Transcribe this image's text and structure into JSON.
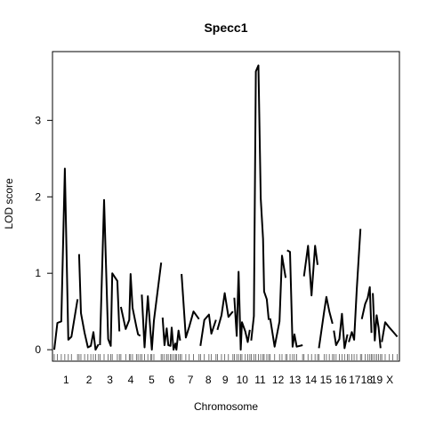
{
  "chart_data": {
    "type": "line",
    "title": "Specc1",
    "xlabel": "Chromosome",
    "ylabel": "LOD score",
    "ylim": [
      -0.15,
      3.9
    ],
    "yticks": [
      0,
      1,
      2,
      3
    ],
    "grid": false,
    "legend": "none",
    "line_color": "#000000",
    "chromosomes": [
      {
        "label": "1",
        "length": 12,
        "points": [
          [
            0,
            0
          ],
          [
            0.7,
            0.35
          ],
          [
            1.6,
            0.37
          ],
          [
            2.4,
            2.37
          ],
          [
            3.2,
            0.13
          ],
          [
            3.9,
            0.17
          ],
          [
            5.3,
            0.66
          ]
        ]
      },
      {
        "label": "2",
        "length": 10,
        "points": [
          [
            0,
            1.25
          ],
          [
            0.5,
            0.48
          ],
          [
            1.5,
            0.22
          ],
          [
            2.4,
            0.03
          ],
          [
            3.2,
            0.05
          ],
          [
            3.9,
            0.23
          ],
          [
            4.5,
            0.0
          ],
          [
            5.3,
            0.07
          ]
        ]
      },
      {
        "label": "3",
        "length": 10,
        "points": [
          [
            0,
            0.06
          ],
          [
            0.8,
            1.96
          ],
          [
            1.6,
            0.14
          ],
          [
            2.1,
            0.05
          ],
          [
            2.4,
            1.0
          ],
          [
            3.4,
            0.9
          ],
          [
            3.8,
            0.24
          ]
        ]
      },
      {
        "label": "4",
        "length": 10,
        "points": [
          [
            0,
            0.56
          ],
          [
            1.5,
            0.27
          ],
          [
            2.6,
            0.39
          ],
          [
            3.0,
            0.99
          ],
          [
            3.6,
            0.55
          ],
          [
            4.8,
            0.3
          ],
          [
            5.3,
            0.2
          ],
          [
            6.0,
            0.18
          ]
        ]
      },
      {
        "label": "5",
        "length": 10,
        "points": [
          [
            0,
            0.72
          ],
          [
            0.7,
            0.03
          ],
          [
            1.5,
            0.7
          ],
          [
            2.2,
            0.2
          ],
          [
            2.5,
            0.0
          ],
          [
            3.0,
            0.38
          ],
          [
            4.8,
            1.14
          ]
        ]
      },
      {
        "label": "6",
        "length": 9,
        "points": [
          [
            0,
            0.42
          ],
          [
            0.6,
            0.06
          ],
          [
            1.3,
            0.28
          ],
          [
            1.8,
            0.06
          ],
          [
            2.5,
            0.05
          ],
          [
            2.9,
            0.29
          ],
          [
            3.5,
            0.0
          ],
          [
            4.1,
            0.08
          ],
          [
            4.4,
            0.0
          ],
          [
            5.1,
            0.25
          ],
          [
            5.6,
            0.12
          ]
        ]
      },
      {
        "label": "7",
        "length": 9,
        "points": [
          [
            0,
            0.99
          ],
          [
            1.0,
            0.16
          ],
          [
            1.8,
            0.3
          ],
          [
            2.8,
            0.5
          ],
          [
            4.1,
            0.4
          ]
        ]
      },
      {
        "label": "8",
        "length": 8,
        "points": [
          [
            0,
            0.05
          ],
          [
            1.1,
            0.39
          ],
          [
            2.4,
            0.46
          ],
          [
            3.1,
            0.21
          ],
          [
            4.4,
            0.39
          ]
        ]
      },
      {
        "label": "9",
        "length": 8,
        "points": [
          [
            0,
            0.26
          ],
          [
            1.0,
            0.45
          ],
          [
            1.8,
            0.74
          ],
          [
            2.7,
            0.43
          ],
          [
            3.8,
            0.5
          ]
        ]
      },
      {
        "label": "10",
        "length": 8,
        "points": [
          [
            0,
            0.68
          ],
          [
            0.8,
            0.18
          ],
          [
            1.4,
            1.02
          ],
          [
            2.1,
            0.0
          ],
          [
            2.5,
            0.36
          ],
          [
            3.6,
            0.24
          ],
          [
            4.4,
            0.1
          ],
          [
            5.1,
            0.26
          ]
        ]
      },
      {
        "label": "11",
        "length": 9,
        "points": [
          [
            0,
            0.12
          ],
          [
            0.7,
            0.44
          ],
          [
            1.2,
            3.64
          ],
          [
            1.9,
            3.72
          ],
          [
            2.5,
            1.98
          ],
          [
            3.1,
            1.45
          ],
          [
            3.4,
            0.76
          ],
          [
            4.1,
            0.66
          ],
          [
            4.6,
            0.39
          ]
        ]
      },
      {
        "label": "12",
        "length": 8,
        "points": [
          [
            0,
            0.41
          ],
          [
            1.1,
            0.04
          ],
          [
            2.3,
            0.37
          ],
          [
            2.9,
            1.23
          ],
          [
            3.8,
            0.94
          ]
        ]
      },
      {
        "label": "13",
        "length": 8,
        "points": [
          [
            0,
            1.3
          ],
          [
            0.8,
            1.28
          ],
          [
            1.5,
            0.04
          ],
          [
            2.0,
            0.2
          ],
          [
            2.6,
            0.04
          ],
          [
            4.2,
            0.06
          ]
        ]
      },
      {
        "label": "14",
        "length": 7,
        "points": [
          [
            0,
            0.96
          ],
          [
            0.8,
            1.36
          ],
          [
            1.5,
            0.71
          ],
          [
            2.2,
            1.36
          ],
          [
            2.7,
            1.11
          ]
        ]
      },
      {
        "label": "15",
        "length": 7,
        "points": [
          [
            0,
            0.02
          ],
          [
            1.6,
            0.5
          ],
          [
            2.3,
            0.69
          ],
          [
            3.2,
            0.5
          ],
          [
            4.2,
            0.34
          ]
        ]
      },
      {
        "label": "16",
        "length": 7,
        "points": [
          [
            0,
            0.25
          ],
          [
            0.6,
            0.06
          ],
          [
            1.5,
            0.14
          ],
          [
            2.2,
            0.47
          ],
          [
            2.9,
            0.02
          ],
          [
            3.7,
            0.2
          ]
        ]
      },
      {
        "label": "17",
        "length": 6,
        "points": [
          [
            0,
            0.1
          ],
          [
            0.8,
            0.23
          ],
          [
            1.4,
            0.13
          ],
          [
            2.1,
            0.78
          ],
          [
            3.1,
            1.58
          ]
        ]
      },
      {
        "label": "18",
        "length": 5,
        "points": [
          [
            0,
            0.4
          ],
          [
            0.8,
            0.6
          ],
          [
            1.4,
            0.68
          ],
          [
            1.9,
            0.82
          ],
          [
            2.3,
            0.22
          ]
        ]
      },
      {
        "label": "19",
        "length": 4,
        "points": [
          [
            0,
            0.74
          ],
          [
            0.5,
            0.12
          ],
          [
            1.0,
            0.45
          ],
          [
            1.5,
            0.29
          ],
          [
            2.0,
            0.02
          ]
        ]
      },
      {
        "label": "X",
        "length": 8,
        "points": [
          [
            0,
            0.1
          ],
          [
            0.8,
            0.36
          ],
          [
            1.8,
            0.29
          ],
          [
            2.6,
            0.24
          ],
          [
            3.7,
            0.17
          ]
        ]
      }
    ]
  }
}
